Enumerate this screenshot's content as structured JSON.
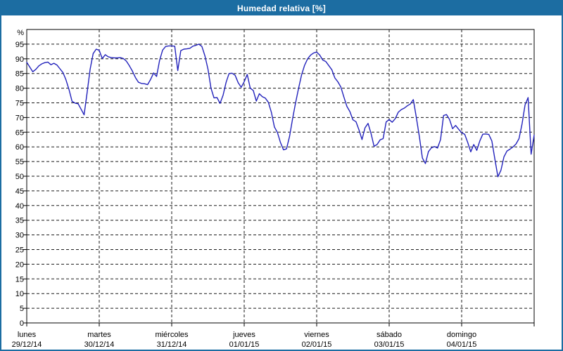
{
  "title": "Humedad relativa [%]",
  "colors": {
    "titlebar_bg": "#1c6da2",
    "frame_border": "#1c6da2",
    "series_line": "#2222bb",
    "grid": "#1a1a1a",
    "axis": "#000000",
    "text": "#000000",
    "title_text": "#ffffff",
    "plot_bg": "#ffffff"
  },
  "chart_data": {
    "type": "line",
    "title": "Humedad relativa [%]",
    "ylabel": "%",
    "ylim": [
      0,
      100
    ],
    "yticks": [
      0,
      5,
      10,
      15,
      20,
      25,
      30,
      35,
      40,
      45,
      50,
      55,
      60,
      65,
      70,
      75,
      80,
      85,
      90,
      95
    ],
    "grid": "dashed",
    "legend": "none",
    "x_axis": {
      "days": [
        {
          "name": "lunes",
          "date": "29/12/14"
        },
        {
          "name": "martes",
          "date": "30/12/14"
        },
        {
          "name": "miércoles",
          "date": "31/12/14"
        },
        {
          "name": "jueves",
          "date": "01/01/15"
        },
        {
          "name": "viernes",
          "date": "02/01/15"
        },
        {
          "name": "sábado",
          "date": "03/01/15"
        },
        {
          "name": "domingo",
          "date": "04/01/15"
        }
      ],
      "days_total": 7
    },
    "series": [
      {
        "name": "Humedad relativa",
        "unit": "%",
        "sample_interval_hours": 1,
        "hours_total": 168,
        "values": [
          88.8,
          87.2,
          85.6,
          86.4,
          87.6,
          88.3,
          88.7,
          88.9,
          88.0,
          88.5,
          87.9,
          86.6,
          85.3,
          82.8,
          79.5,
          75.5,
          74.9,
          74.7,
          72.8,
          70.9,
          78.5,
          86.5,
          91.8,
          93.3,
          92.9,
          90.1,
          91.4,
          90.7,
          90.4,
          90.3,
          90.3,
          90.4,
          90.1,
          89.2,
          87.6,
          85.8,
          83.6,
          82.0,
          81.6,
          81.5,
          81.2,
          83.0,
          85.2,
          84.0,
          89.5,
          93.0,
          94.2,
          94.4,
          94.4,
          94.3,
          86.0,
          92.8,
          93.3,
          93.4,
          93.6,
          94.3,
          94.6,
          95.0,
          94.2,
          91.0,
          86.5,
          80.0,
          76.7,
          76.8,
          74.8,
          77.6,
          82.0,
          85.0,
          85.1,
          84.4,
          81.9,
          80.3,
          82.2,
          84.7,
          80.0,
          79.2,
          75.6,
          78.1,
          77.1,
          76.6,
          75.2,
          71.8,
          66.8,
          64.9,
          61.5,
          59.0,
          59.3,
          63.5,
          69.5,
          75.0,
          80.0,
          84.5,
          87.8,
          90.0,
          91.3,
          92.0,
          92.3,
          91.3,
          89.6,
          89.1,
          87.7,
          86.3,
          83.5,
          82.2,
          80.4,
          77.0,
          73.8,
          72.0,
          69.2,
          68.6,
          65.8,
          62.5,
          66.5,
          68.0,
          64.5,
          60.2,
          60.8,
          62.4,
          62.8,
          68.5,
          69.3,
          68.4,
          69.6,
          71.8,
          72.7,
          73.2,
          74.0,
          74.6,
          76.1,
          70.0,
          63.5,
          56.2,
          54.3,
          58.4,
          59.7,
          60.1,
          59.6,
          62.5,
          70.7,
          71.0,
          69.3,
          66.2,
          67.3,
          66.0,
          64.8,
          64.3,
          61.5,
          58.3,
          60.8,
          58.8,
          62.0,
          64.3,
          64.4,
          64.2,
          62.0,
          55.8,
          49.8,
          52.0,
          56.6,
          58.6,
          59.2,
          60.0,
          61.0,
          62.8,
          67.8,
          74.3,
          76.8,
          57.5,
          64.0
        ]
      }
    ]
  }
}
